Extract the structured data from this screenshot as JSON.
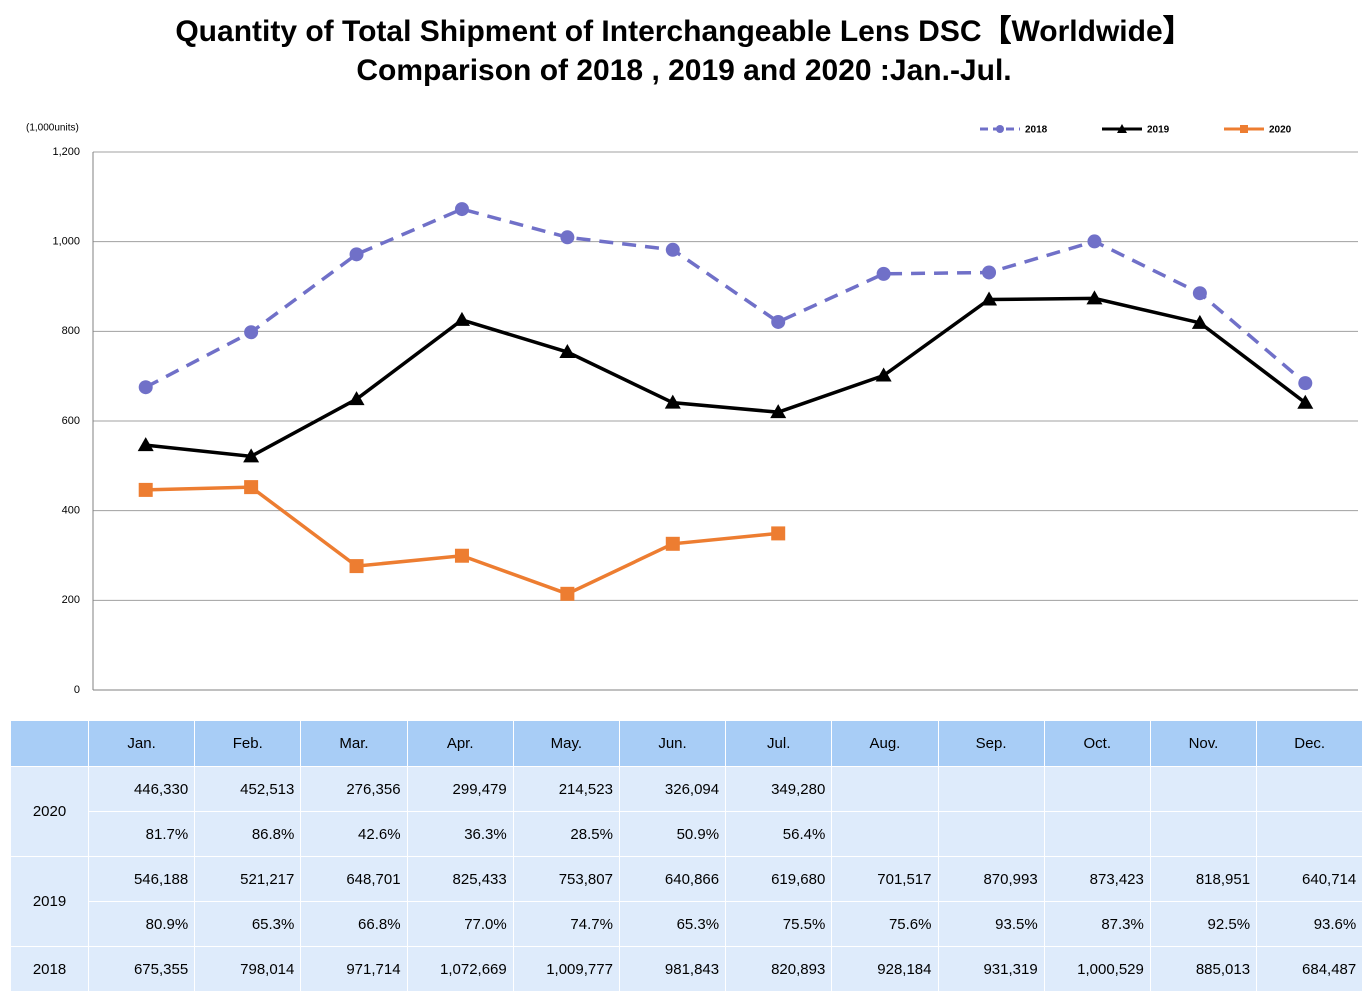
{
  "chart_data": {
    "type": "line",
    "title": [
      "Quantity of Total Shipment of Interchangeable Lens DSC【Worldwide】",
      "Comparison of 2018 , 2019 and 2020 :Jan.-Jul."
    ],
    "y_label": "(1,000units)",
    "categories": [
      "Jan.",
      "Feb.",
      "Mar.",
      "Apr.",
      "May.",
      "Jun.",
      "Jul.",
      "Aug.",
      "Sep.",
      "Oct.",
      "Nov.",
      "Dec."
    ],
    "ylim": [
      0,
      1200
    ],
    "yticks": [
      0,
      200,
      400,
      600,
      800,
      {
        "value": 1000,
        "label": "1,000"
      },
      {
        "value": 1200,
        "label": "1,200"
      }
    ],
    "grid": true,
    "legend": "top-right",
    "series": [
      {
        "name": "2018",
        "color": "#7070c8",
        "dashed": true,
        "marker": "circle",
        "values": [
          675.355,
          798.014,
          971.714,
          1072.669,
          1009.777,
          981.843,
          820.893,
          928.184,
          931.319,
          1000.529,
          885.013,
          684.487
        ],
        "value_labels": [
          "675,355",
          "798,014",
          "971,714",
          "1,072,669",
          "1,009,777",
          "981,843",
          "820,893",
          "928,184",
          "931,319",
          "1,000,529",
          "885,013",
          "684,487"
        ]
      },
      {
        "name": "2019",
        "color": "#000000",
        "dashed": false,
        "marker": "triangle",
        "values": [
          546.188,
          521.217,
          648.701,
          825.433,
          753.807,
          640.866,
          619.68,
          701.517,
          870.993,
          873.423,
          818.951,
          640.714
        ],
        "value_labels": [
          "546,188",
          "521,217",
          "648,701",
          "825,433",
          "753,807",
          "640,866",
          "619,680",
          "701,517",
          "870,993",
          "873,423",
          "818,951",
          "640,714"
        ],
        "ratios": [
          "80.9%",
          "65.3%",
          "66.8%",
          "77.0%",
          "74.7%",
          "65.3%",
          "75.5%",
          "75.6%",
          "93.5%",
          "87.3%",
          "92.5%",
          "93.6%"
        ]
      },
      {
        "name": "2020",
        "color": "#ed7d31",
        "dashed": false,
        "marker": "square",
        "values": [
          446.33,
          452.513,
          276.356,
          299.479,
          214.523,
          326.094,
          349.28,
          null,
          null,
          null,
          null,
          null
        ],
        "value_labels": [
          "446,330",
          "452,513",
          "276,356",
          "299,479",
          "214,523",
          "326,094",
          "349,280",
          null,
          null,
          null,
          null,
          null
        ],
        "ratios": [
          "81.7%",
          "86.8%",
          "42.6%",
          "36.3%",
          "28.5%",
          "50.9%",
          "56.4%",
          null,
          null,
          null,
          null,
          null
        ]
      }
    ]
  }
}
